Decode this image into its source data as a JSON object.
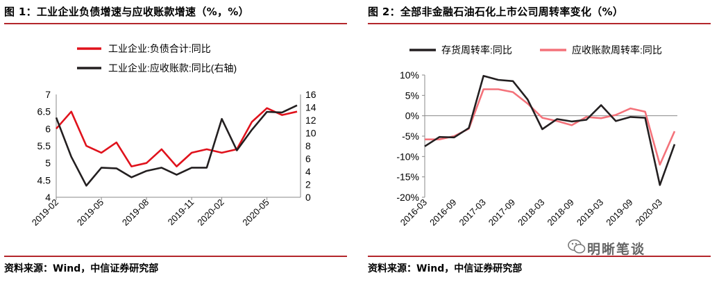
{
  "chart_data": [
    {
      "type": "line",
      "title": "图 1：工业企业负债增速与应收账款增速（%，%）",
      "source": "资料来源：Wind，中信证券研究部",
      "x": [
        "2019-02",
        "2019-03",
        "2019-04",
        "2019-05",
        "2019-06",
        "2019-07",
        "2019-08",
        "2019-09",
        "2019-10",
        "2019-11",
        "2019-12",
        "2020-02",
        "2020-03",
        "2020-04",
        "2020-05",
        "2020-06",
        "2020-07"
      ],
      "x_tick_labels": [
        "2019-02",
        "2019-05",
        "2019-08",
        "2019-11",
        "2020-02",
        "2020-05"
      ],
      "y_left": {
        "ylim": [
          4,
          7
        ],
        "ticks": [
          "4",
          "4.5",
          "5",
          "5.5",
          "6",
          "6.5",
          "7"
        ]
      },
      "y_right": {
        "ylim": [
          0,
          16
        ],
        "ticks": [
          "0",
          "2",
          "4",
          "6",
          "8",
          "10",
          "12",
          "14",
          "16"
        ]
      },
      "series": [
        {
          "name": "工业企业:负债合计:同比",
          "color": "#e0121c",
          "axis": "left",
          "values": [
            6.0,
            6.5,
            5.5,
            5.3,
            5.6,
            4.9,
            5.0,
            5.4,
            4.9,
            5.3,
            5.4,
            5.3,
            5.4,
            6.2,
            6.6,
            6.4,
            6.5
          ]
        },
        {
          "name": "工业企业:应收账款:同比(右轴)",
          "color": "#231f20",
          "axis": "right",
          "values": [
            12.4,
            6.3,
            1.8,
            4.6,
            4.5,
            3.1,
            4.1,
            4.6,
            3.5,
            4.6,
            4.6,
            12.2,
            7.3,
            10.5,
            13.3,
            13.2,
            14.3
          ]
        }
      ]
    },
    {
      "type": "line",
      "title": "图 2：全部非金融石油石化上市公司周转率变化（%）",
      "source": "资料来源：Wind，中信证券研究部",
      "x": [
        "2016-03",
        "2016-06",
        "2016-09",
        "2016-12",
        "2017-03",
        "2017-06",
        "2017-09",
        "2017-12",
        "2018-03",
        "2018-06",
        "2018-09",
        "2018-12",
        "2019-03",
        "2019-06",
        "2019-09",
        "2019-12",
        "2020-03",
        "2020-06"
      ],
      "x_tick_labels": [
        "2016-03",
        "2016-09",
        "2017-03",
        "2017-09",
        "2018-03",
        "2018-09",
        "2019-03",
        "2019-09",
        "2020-03"
      ],
      "y": {
        "ylim": [
          -20,
          10
        ],
        "ticks": [
          "10%",
          "5%",
          "0%",
          "-5%",
          "-10%",
          "-15%",
          "-20%"
        ]
      },
      "series": [
        {
          "name": "存货周转率:同比",
          "color": "#231f20",
          "values": [
            -7.5,
            -5.2,
            -5.3,
            -3.0,
            9.8,
            8.8,
            8.5,
            4.0,
            -3.3,
            -0.8,
            -1.4,
            -1.0,
            2.6,
            -1.3,
            -0.3,
            -0.5,
            -17.0,
            -7.0
          ]
        },
        {
          "name": "应收账款周转率:同比",
          "color": "#f4727a",
          "values": [
            -5.8,
            -5.8,
            -5.0,
            -3.2,
            6.5,
            6.5,
            5.8,
            3.0,
            -0.5,
            -1.3,
            -2.3,
            -0.3,
            -0.6,
            0.2,
            1.8,
            1.0,
            -12.0,
            -3.8
          ]
        }
      ]
    }
  ],
  "watermark": "明晰笔谈"
}
